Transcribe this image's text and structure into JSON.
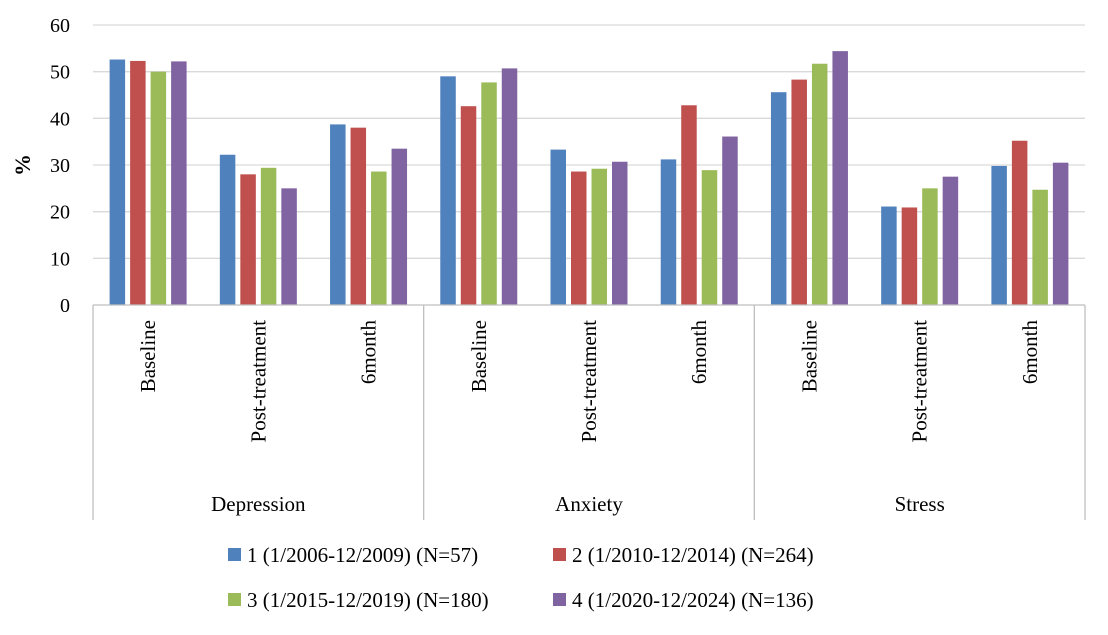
{
  "chart_data": {
    "type": "bar",
    "title": "",
    "xlabel": "",
    "ylabel": "%",
    "ylim": [
      0,
      60
    ],
    "yticks": [
      0,
      10,
      20,
      30,
      40,
      50,
      60
    ],
    "grid": true,
    "legend_position": "bottom",
    "groups": [
      {
        "label": "Depression",
        "categories": [
          "Baseline",
          "Post-treatment",
          "6month"
        ]
      },
      {
        "label": "Anxiety",
        "categories": [
          "Baseline",
          "Post-treatment",
          "6month"
        ]
      },
      {
        "label": "Stress",
        "categories": [
          "Baseline",
          "Post-treatment",
          "6month"
        ]
      }
    ],
    "series": [
      {
        "name": "1 (1/2006-12/2009) (N=57)",
        "color": "#4F81BD",
        "values": [
          52.6,
          32.2,
          38.7,
          49.0,
          33.3,
          31.2,
          45.6,
          21.1,
          29.8
        ]
      },
      {
        "name": "2 (1/2010-12/2014) (N=264)",
        "color": "#C0504D",
        "values": [
          52.3,
          28.0,
          38.0,
          42.6,
          28.6,
          42.8,
          48.3,
          20.9,
          35.2
        ]
      },
      {
        "name": "3 (1/2015-12/2019) (N=180)",
        "color": "#9BBB59",
        "values": [
          50.0,
          29.4,
          28.6,
          47.7,
          29.2,
          28.9,
          51.7,
          25.0,
          24.7
        ]
      },
      {
        "name": "4 (1/2020-12/2024) (N=136)",
        "color": "#8064A2",
        "values": [
          52.2,
          25.0,
          33.5,
          50.7,
          30.7,
          36.1,
          54.4,
          27.5,
          30.5
        ]
      }
    ]
  }
}
